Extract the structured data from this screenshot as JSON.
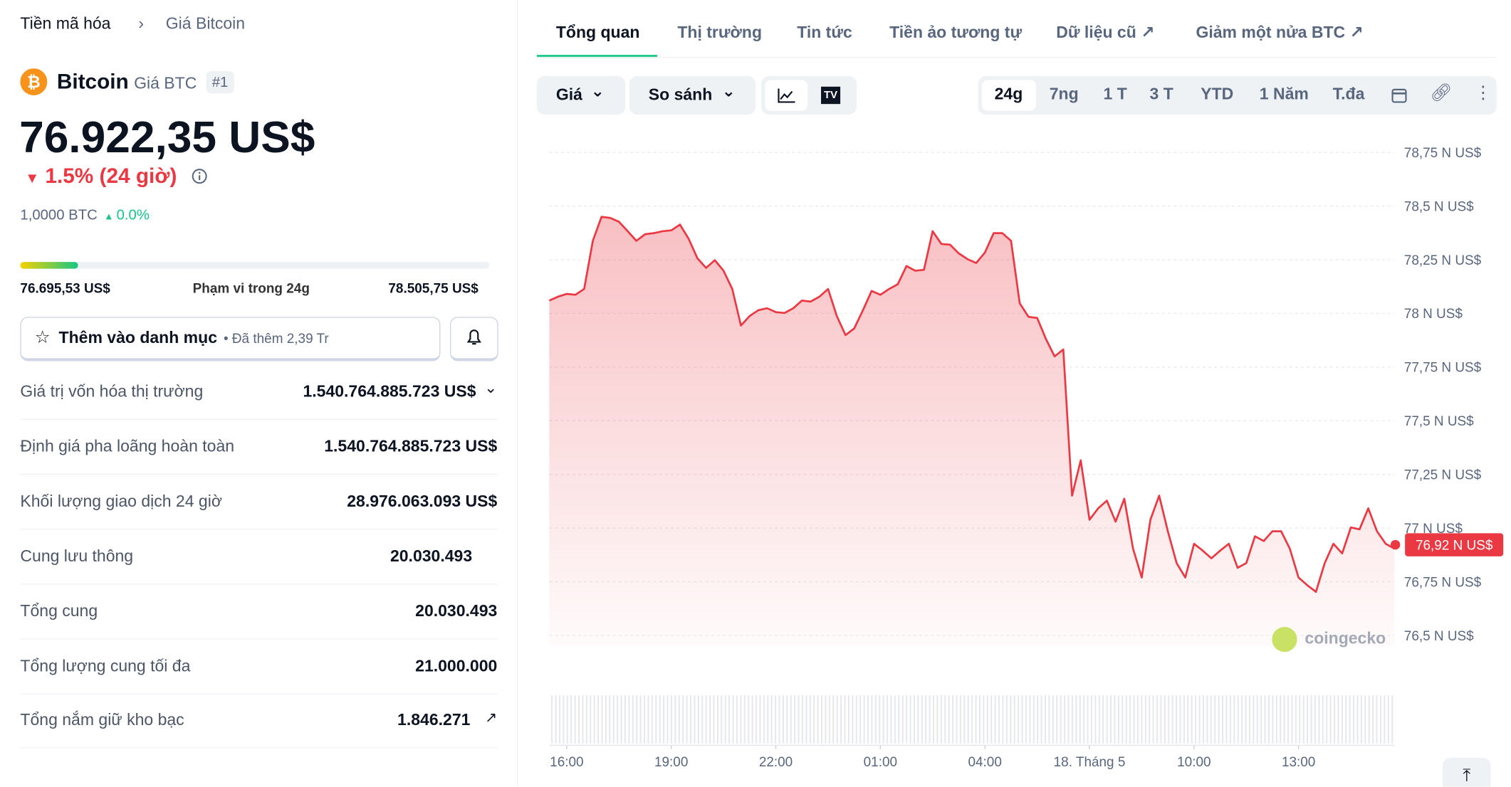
{
  "breadcrumb": [
    "Tiền mã hóa",
    "Giá Bitcoin"
  ],
  "coin": {
    "name": "Bitcoin",
    "symbol_label": "Giá BTC",
    "rank": "#1",
    "price": "76.922,35 US$",
    "change": "1.5% (24 giờ)",
    "btc_price": "1,0000 BTC",
    "btc_change": "0.0%"
  },
  "range": {
    "low": "76.695,53 US$",
    "label": "Phạm vi trong 24g",
    "high": "78.505,75 US$"
  },
  "watchlist": {
    "button": "Thêm vào danh mục",
    "added": "• Đã thêm 2,39 Tr"
  },
  "stats": [
    {
      "label": "Giá trị vốn hóa thị trường",
      "value": "1.540.764.885.723 US$"
    },
    {
      "label": "Định giá pha loãng hoàn toàn",
      "value": "1.540.764.885.723 US$"
    },
    {
      "label": "Khối lượng giao dịch 24 giờ",
      "value": "28.976.063.093 US$"
    },
    {
      "label": "Cung lưu thông",
      "value": "20.030.493"
    },
    {
      "label": "Tổng cung",
      "value": "20.030.493"
    },
    {
      "label": "Tổng lượng cung tối đa",
      "value": "21.000.000"
    },
    {
      "label": "Tổng nắm giữ kho bạc",
      "value": "1.846.271"
    }
  ],
  "tabs": [
    "Tổng quan",
    "Thị trường",
    "Tin tức",
    "Tiền ảo tương tự",
    "Dữ liệu cũ",
    "Giảm một nửa BTC"
  ],
  "controls": {
    "price": "Giá",
    "compare": "So sánh"
  },
  "ranges": [
    "24g",
    "7ng",
    "1 T",
    "3 T",
    "YTD",
    "1 Năm",
    "T.đa"
  ],
  "chart_data": {
    "type": "line",
    "color": "#ea3943",
    "watermark": "coingecko",
    "values": [
      78060,
      78078,
      78091,
      78087,
      78114,
      78338,
      78450,
      78445,
      78427,
      78383,
      78338,
      78369,
      78374,
      78383,
      78387,
      78414,
      78347,
      78257,
      78212,
      78248,
      78199,
      78114,
      77944,
      77988,
      78015,
      78024,
      78006,
      78002,
      78024,
      78060,
      78055,
      78078,
      78114,
      77988,
      77899,
      77930,
      78015,
      78105,
      78087,
      78114,
      78136,
      78221,
      78199,
      78203,
      78383,
      78324,
      78320,
      78280,
      78253,
      78235,
      78284,
      78374,
      78374,
      78338,
      78047,
      77984,
      77979,
      77881,
      77800,
      77832,
      77151,
      77316,
      77039,
      77092,
      77128,
      77030,
      77137,
      76904,
      76770,
      77039,
      77151,
      76985,
      76837,
      76770,
      76927,
      76895,
      76859,
      76895,
      76927,
      76815,
      76837,
      76962,
      76940,
      76985,
      76985,
      76904,
      76770,
      76734,
      76703,
      76837,
      76927,
      76882,
      77003,
      76994,
      77092,
      76985,
      76927,
      76904
    ],
    "xlim": [
      0,
      97
    ],
    "xticks": [
      {
        "value": 2,
        "label": "16:00"
      },
      {
        "value": 14,
        "label": "19:00"
      },
      {
        "value": 26,
        "label": "22:00"
      },
      {
        "value": 38,
        "label": "01:00"
      },
      {
        "value": 50,
        "label": "04:00"
      },
      {
        "value": 62,
        "label": "18. Tháng 5"
      },
      {
        "value": 74,
        "label": "10:00"
      },
      {
        "value": 86,
        "label": "13:00"
      }
    ],
    "ylim": [
      76450,
      78850
    ],
    "yticks": [
      {
        "value": 78750,
        "label": "78,75 N US$"
      },
      {
        "value": 78500,
        "label": "78,5 N US$"
      },
      {
        "value": 78250,
        "label": "78,25 N US$"
      },
      {
        "value": 78000,
        "label": "78 N US$"
      },
      {
        "value": 77750,
        "label": "77,75 N US$"
      },
      {
        "value": 77500,
        "label": "77,5 N US$"
      },
      {
        "value": 77250,
        "label": "77,25 N US$"
      },
      {
        "value": 77000,
        "label": "77 N US$"
      },
      {
        "value": 76750,
        "label": "76,75 N US$"
      },
      {
        "value": 76500,
        "label": "76,5 N US$"
      }
    ],
    "current": {
      "value": 76922.35,
      "label": "76,92 N US$"
    },
    "grid": true
  }
}
